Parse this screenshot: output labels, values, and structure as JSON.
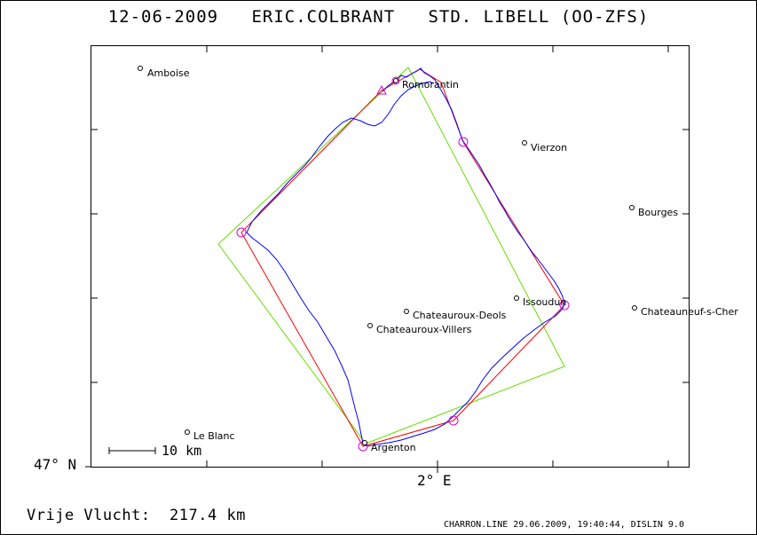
{
  "header": {
    "date": "12-06-2009",
    "pilot": "ERIC.COLBRANT",
    "glider": "STD. LIBELL (OO-ZFS)"
  },
  "axes": {
    "lat_label": "47° N",
    "lon_label": "2° E"
  },
  "scale": {
    "label": "10 km"
  },
  "distance": {
    "label": "Vrije Vlucht:",
    "value": "217.4 km"
  },
  "footer": {
    "file": "CHARRON.LINE",
    "date": "29.06.2009",
    "time": "19:40:44",
    "software": "DISLIN 9.0"
  },
  "places": [
    {
      "name": "Amboise"
    },
    {
      "name": "Romorantin"
    },
    {
      "name": "Vierzon"
    },
    {
      "name": "Bourges"
    },
    {
      "name": "Issoudun"
    },
    {
      "name": "Chateauneuf-s-Cher"
    },
    {
      "name": "Chateauroux-Deols"
    },
    {
      "name": "Chateauroux-Villers"
    },
    {
      "name": "Le Blanc"
    },
    {
      "name": "Argenton"
    }
  ],
  "colors": {
    "track": "#0000ff",
    "task": "#ff0000",
    "sector": "#66dd00",
    "turnpoint": "#dd00dd",
    "frame": "#000000"
  }
}
